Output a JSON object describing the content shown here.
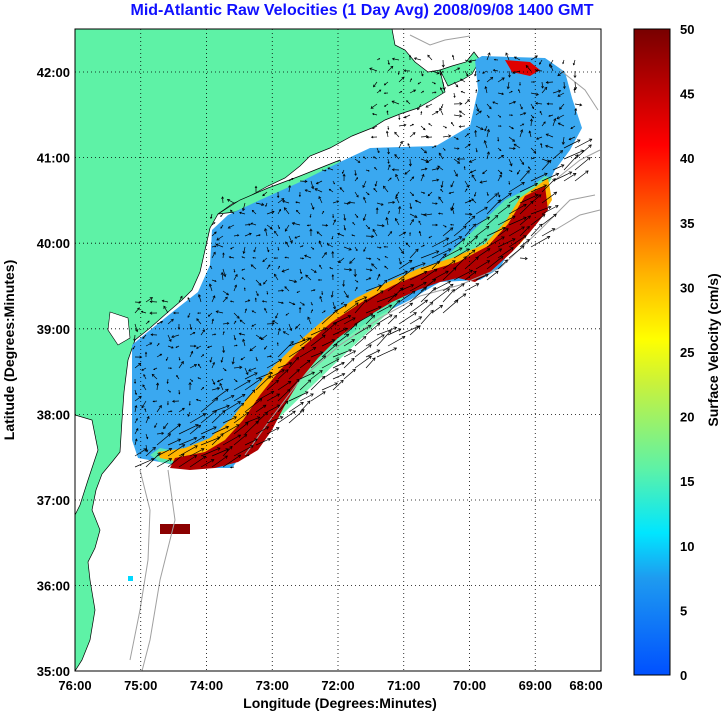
{
  "title": "Mid-Atlantic Raw Velocities (1 Day Avg) 2008/09/08 1400 GMT",
  "map": {
    "xlabel": "Longitude (Degrees:Minutes)",
    "ylabel": "Latitude (Degrees:Minutes)",
    "lon_ticks": [
      "76:00",
      "75:00",
      "74:00",
      "73:00",
      "72:00",
      "71:00",
      "70:00",
      "69:00",
      "68:00"
    ],
    "lat_ticks": [
      "42:00",
      "41:00",
      "40:00",
      "39:00",
      "38:00",
      "37:00",
      "36:00",
      "35:00"
    ],
    "lon_range": [
      -76,
      -68
    ],
    "lat_range": [
      35,
      42.5
    ],
    "grid": "dotted",
    "land_color": "#5ef2a6",
    "ocean_color": "#ffffff"
  },
  "colorbar": {
    "label": "Surface Velocity (cm/s)",
    "ticks": [
      "50",
      "45",
      "40",
      "35",
      "30",
      "25",
      "20",
      "15",
      "10",
      "5",
      "0"
    ],
    "range": [
      0,
      50
    ],
    "colormap": "jet"
  }
}
